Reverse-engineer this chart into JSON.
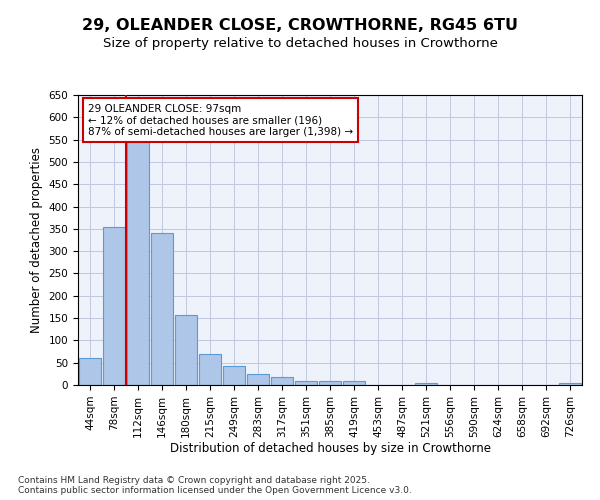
{
  "title_line1": "29, OLEANDER CLOSE, CROWTHORNE, RG45 6TU",
  "title_line2": "Size of property relative to detached houses in Crowthorne",
  "xlabel": "Distribution of detached houses by size in Crowthorne",
  "ylabel": "Number of detached properties",
  "categories": [
    "44sqm",
    "78sqm",
    "112sqm",
    "146sqm",
    "180sqm",
    "215sqm",
    "249sqm",
    "283sqm",
    "317sqm",
    "351sqm",
    "385sqm",
    "419sqm",
    "453sqm",
    "487sqm",
    "521sqm",
    "556sqm",
    "590sqm",
    "624sqm",
    "658sqm",
    "692sqm",
    "726sqm"
  ],
  "values": [
    60,
    355,
    545,
    340,
    158,
    70,
    42,
    25,
    18,
    10,
    8,
    8,
    0,
    0,
    4,
    0,
    0,
    0,
    0,
    0,
    5
  ],
  "bar_color": "#aec6e8",
  "bar_edge_color": "#5b9bd5",
  "vline_x": 1.5,
  "vline_color": "#cc0000",
  "annotation_text": "29 OLEANDER CLOSE: 97sqm\n← 12% of detached houses are smaller (196)\n87% of semi-detached houses are larger (1,398) →",
  "annotation_box_color": "#cc0000",
  "ylim": [
    0,
    650
  ],
  "yticks": [
    0,
    50,
    100,
    150,
    200,
    250,
    300,
    350,
    400,
    450,
    500,
    550,
    600,
    650
  ],
  "footnote": "Contains HM Land Registry data © Crown copyright and database right 2025.\nContains public sector information licensed under the Open Government Licence v3.0.",
  "bg_color": "#eef2fb",
  "grid_color": "#c0c8e0",
  "title_fontsize": 11.5,
  "subtitle_fontsize": 9.5,
  "axis_label_fontsize": 8.5,
  "tick_fontsize": 7.5,
  "annotation_fontsize": 7.5,
  "footnote_fontsize": 6.5
}
